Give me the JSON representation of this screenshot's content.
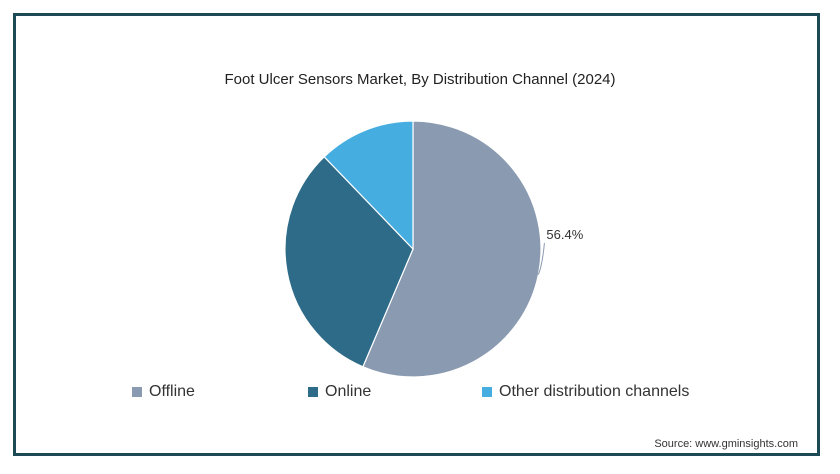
{
  "chart_data": {
    "type": "pie",
    "title": "Foot Ulcer Sensors Market, By Distribution Channel (2024)",
    "categories": [
      "Offline",
      "Online",
      "Other distribution channels"
    ],
    "values": [
      56.4,
      31.4,
      12.2
    ],
    "colors": [
      "#8a9ab1",
      "#2e6b89",
      "#45ade0"
    ],
    "data_labels": [
      "56.4%",
      null,
      null
    ],
    "legend_position": "bottom"
  },
  "source": "Source: www.gminsights.com"
}
